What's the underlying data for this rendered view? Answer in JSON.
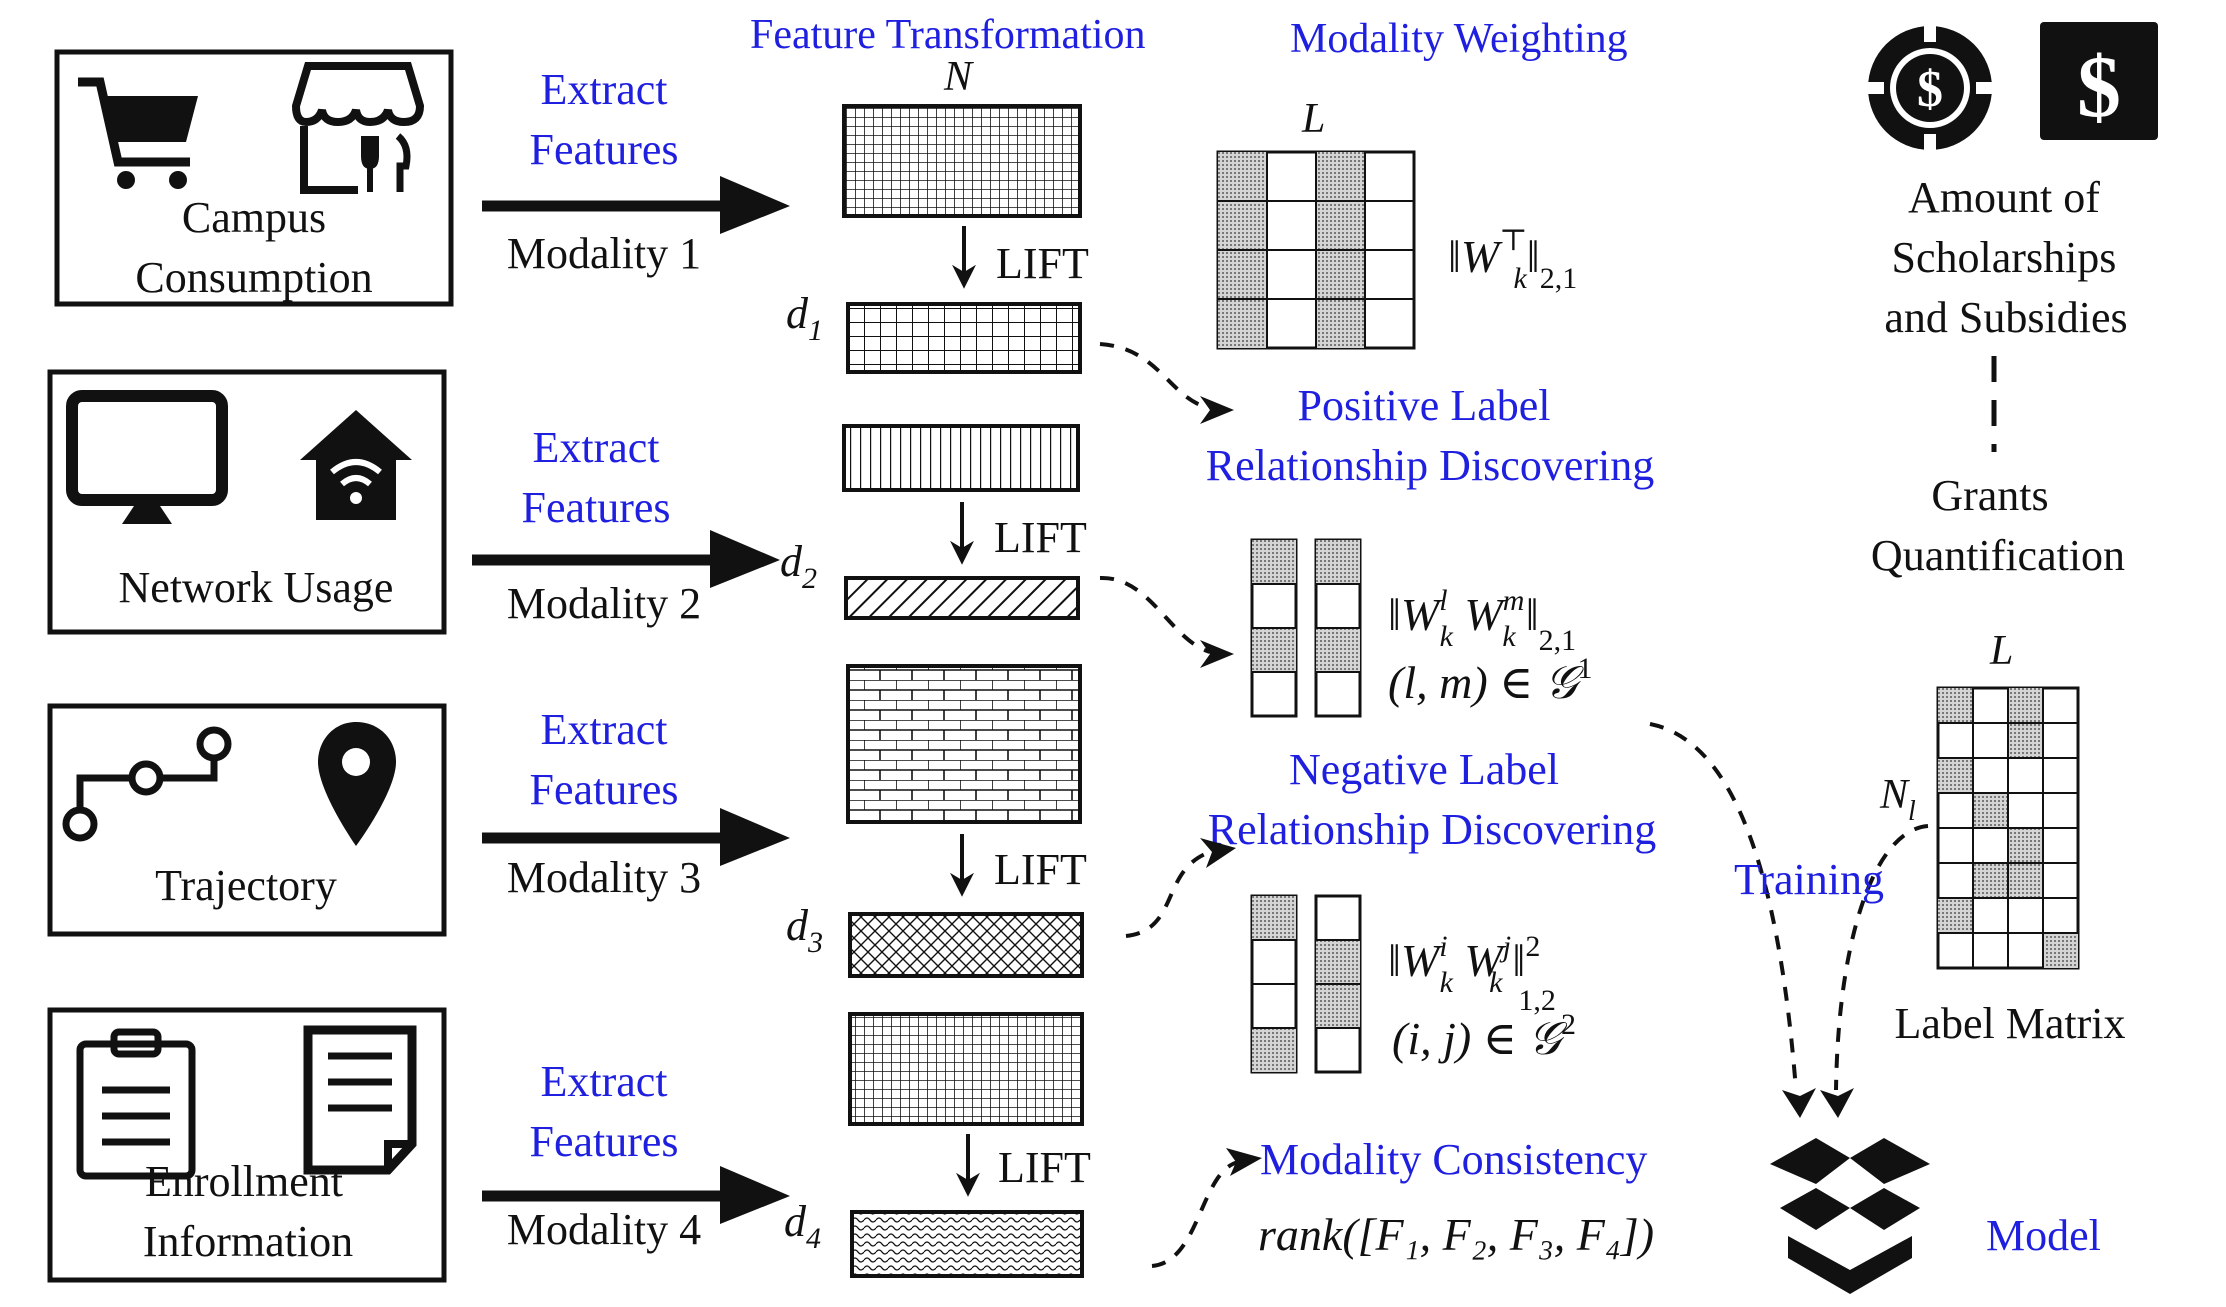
{
  "modalities": [
    {
      "title_lines": [
        "Campus",
        "Consumption"
      ],
      "extract_lines": [
        "Extract",
        "Features"
      ],
      "modality_label": "Modality 1",
      "dim_label": "d",
      "dim_sub": "1"
    },
    {
      "title_lines": [
        "Network Usage"
      ],
      "extract_lines": [
        "Extract",
        "Features"
      ],
      "modality_label": "Modality 2",
      "dim_label": "d",
      "dim_sub": "2"
    },
    {
      "title_lines": [
        "Trajectory"
      ],
      "extract_lines": [
        "Extract",
        "Features"
      ],
      "modality_label": "Modality 3",
      "dim_label": "d",
      "dim_sub": "3"
    },
    {
      "title_lines": [
        "Enrollment",
        "Information"
      ],
      "extract_lines": [
        "Extract",
        "Features"
      ],
      "modality_label": "Modality 4",
      "dim_label": "d",
      "dim_sub": "4"
    }
  ],
  "icons": {
    "m1": [
      "shopping-cart-icon",
      "storefront-icon"
    ],
    "m2": [
      "monitor-icon",
      "home-wifi-icon"
    ],
    "m3": [
      "route-icon",
      "location-pin-icon"
    ],
    "m4": [
      "clipboard-icon",
      "document-icon"
    ],
    "scholarship": [
      "casino-chip-dollar-icon",
      "dollar-square-icon"
    ],
    "model": "open-box-icon"
  },
  "headers": {
    "feature_transformation": "Feature  Transformation",
    "modality_weighting": "Modality Weighting",
    "N": "N",
    "L": "L"
  },
  "lift_label": "LIFT",
  "positive": {
    "lines": [
      "Positive Label",
      "Relationship Discovering"
    ],
    "formula_main": "‖W",
    "formula_super": "l",
    "formula_sub": "k",
    "formula_mid": " W",
    "formula_super2": "m",
    "formula_sub2": "k",
    "formula_norm": "‖",
    "formula_norm_sub": "2,1",
    "set_text": "(l, m) ∈ 𝒢",
    "set_sup": "1"
  },
  "negative": {
    "lines": [
      "Negative Label",
      "Relationship Discovering"
    ],
    "formula_main": "‖W",
    "formula_super": "i",
    "formula_sub": "k",
    "formula_mid": " W",
    "formula_super2": "j",
    "formula_sub2": "k",
    "formula_norm": "‖",
    "formula_norm_sub": "1,2",
    "formula_norm_sup": "2",
    "set_text": "(i, j) ∈ 𝒢",
    "set_sup": "2"
  },
  "weighting_formula": {
    "main": "‖W",
    "sup": "⊤",
    "sub": "k",
    "norm": "‖",
    "norm_sub": "2,1"
  },
  "consistency": {
    "label": "Modality Consistency",
    "formula": "rank([F₁, F₂, F₃, F₄])"
  },
  "scholarship": {
    "lines": [
      "Amount of",
      "Scholarships",
      "and Subsidies"
    ]
  },
  "grants": {
    "lines": [
      "Grants",
      "Quantification"
    ]
  },
  "label_matrix": {
    "title": "Label Matrix",
    "rows_label": "N",
    "rows_sub": "l"
  },
  "training_label": "Training",
  "model_label": "Model",
  "colors": {
    "ink": "#111111",
    "accent": "#1f1fe0"
  }
}
